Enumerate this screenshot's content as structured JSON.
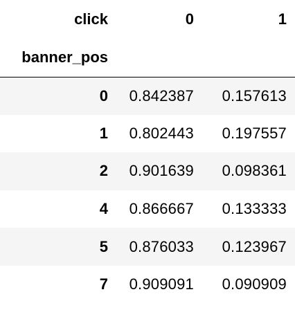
{
  "table": {
    "columns_name": "click",
    "column_headers": [
      "0",
      "1"
    ],
    "index_name": "banner_pos",
    "rows": [
      {
        "index": "0",
        "values": [
          "0.842387",
          "0.157613"
        ]
      },
      {
        "index": "1",
        "values": [
          "0.802443",
          "0.197557"
        ]
      },
      {
        "index": "2",
        "values": [
          "0.901639",
          "0.098361"
        ]
      },
      {
        "index": "4",
        "values": [
          "0.866667",
          "0.133333"
        ]
      },
      {
        "index": "5",
        "values": [
          "0.876033",
          "0.123967"
        ]
      },
      {
        "index": "7",
        "values": [
          "0.909091",
          "0.090909"
        ]
      }
    ]
  },
  "colors": {
    "text": "#000000",
    "stripe": "#f5f5f5",
    "background": "#ffffff"
  }
}
